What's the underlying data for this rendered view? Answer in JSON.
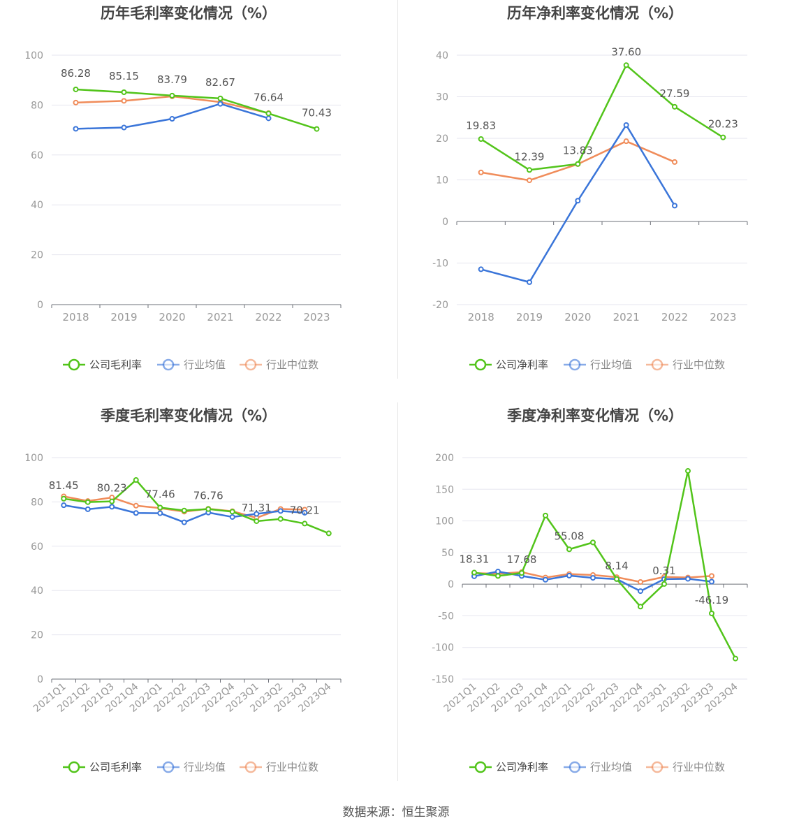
{
  "source_text": "数据来源：恒生聚源",
  "colors": {
    "company": "#52c41a",
    "avg": "#3a75d9",
    "median": "#f08c5a",
    "grid": "#e6e6ef",
    "axis": "#6e7079",
    "label": "#999999",
    "datalabel": "#555555"
  },
  "chart_data": [
    {
      "type": "line",
      "title": "历年毛利率变化情况（%）",
      "categories": [
        "2018",
        "2019",
        "2020",
        "2021",
        "2022",
        "2023"
      ],
      "yticks": [
        0,
        20,
        40,
        60,
        80,
        100
      ],
      "ylim": [
        0,
        100
      ],
      "series": [
        {
          "name": "公司毛利率",
          "key": "company",
          "values": [
            86.28,
            85.15,
            83.79,
            82.67,
            76.64,
            70.43
          ]
        },
        {
          "name": "行业均值",
          "key": "avg",
          "values": [
            70.5,
            71.0,
            74.5,
            80.5,
            74.7,
            null
          ]
        },
        {
          "name": "行业中位数",
          "key": "median",
          "values": [
            81.0,
            81.7,
            83.5,
            81.2,
            76.8,
            null
          ]
        }
      ],
      "data_labels": [
        {
          "index": 0,
          "text": "86.28"
        },
        {
          "index": 1,
          "text": "85.15"
        },
        {
          "index": 2,
          "text": "83.79"
        },
        {
          "index": 3,
          "text": "82.67"
        },
        {
          "index": 4,
          "text": "76.64"
        },
        {
          "index": 5,
          "text": "70.43"
        }
      ],
      "legend": [
        "公司毛利率",
        "行业均值",
        "行业中位数"
      ]
    },
    {
      "type": "line",
      "title": "历年净利率变化情况（%）",
      "categories": [
        "2018",
        "2019",
        "2020",
        "2021",
        "2022",
        "2023"
      ],
      "yticks": [
        -20,
        -10,
        0,
        10,
        20,
        30,
        40
      ],
      "ylim": [
        -20,
        40
      ],
      "series": [
        {
          "name": "公司净利率",
          "key": "company",
          "values": [
            19.83,
            12.39,
            13.83,
            37.6,
            27.59,
            20.23
          ]
        },
        {
          "name": "行业均值",
          "key": "avg",
          "values": [
            -11.5,
            -14.6,
            5.0,
            23.2,
            3.8,
            null
          ]
        },
        {
          "name": "行业中位数",
          "key": "median",
          "values": [
            11.8,
            9.9,
            13.8,
            19.3,
            14.3,
            null
          ]
        }
      ],
      "data_labels": [
        {
          "index": 0,
          "text": "19.83"
        },
        {
          "index": 1,
          "text": "12.39"
        },
        {
          "index": 2,
          "text": "13.83"
        },
        {
          "index": 3,
          "text": "37.60"
        },
        {
          "index": 4,
          "text": "27.59"
        },
        {
          "index": 5,
          "text": "20.23"
        }
      ],
      "legend": [
        "公司净利率",
        "行业均值",
        "行业中位数"
      ]
    },
    {
      "type": "line",
      "title": "季度毛利率变化情况（%）",
      "categories": [
        "2021Q1",
        "2021Q2",
        "2021Q3",
        "2021Q4",
        "2022Q1",
        "2022Q2",
        "2022Q3",
        "2022Q4",
        "2023Q1",
        "2023Q2",
        "2023Q3",
        "2023Q4"
      ],
      "yticks": [
        0,
        20,
        40,
        60,
        80,
        100
      ],
      "ylim": [
        0,
        100
      ],
      "series": [
        {
          "name": "公司毛利率",
          "key": "company",
          "values": [
            81.45,
            79.9,
            80.23,
            89.9,
            77.46,
            76.1,
            76.76,
            75.6,
            71.31,
            72.3,
            70.21,
            65.8
          ]
        },
        {
          "name": "行业均值",
          "key": "avg",
          "values": [
            78.5,
            76.7,
            77.8,
            75.0,
            74.9,
            70.8,
            75.2,
            73.2,
            74.6,
            75.9,
            75.1,
            null
          ]
        },
        {
          "name": "行业中位数",
          "key": "median",
          "values": [
            82.5,
            80.4,
            82.0,
            78.3,
            77.2,
            75.6,
            76.9,
            75.8,
            72.8,
            76.8,
            76.5,
            null
          ]
        }
      ],
      "data_labels": [
        {
          "index": 0,
          "text": "81.45"
        },
        {
          "index": 2,
          "text": "80.23"
        },
        {
          "index": 4,
          "text": "77.46"
        },
        {
          "index": 6,
          "text": "76.76"
        },
        {
          "index": 8,
          "text": "71.31"
        },
        {
          "index": 10,
          "text": "70.21"
        }
      ],
      "legend": [
        "公司毛利率",
        "行业均值",
        "行业中位数"
      ]
    },
    {
      "type": "line",
      "title": "季度净利率变化情况（%）",
      "categories": [
        "2021Q1",
        "2021Q2",
        "2021Q3",
        "2021Q4",
        "2022Q1",
        "2022Q2",
        "2022Q3",
        "2022Q4",
        "2023Q1",
        "2023Q2",
        "2023Q3",
        "2023Q4"
      ],
      "yticks": [
        -150,
        -100,
        -50,
        0,
        50,
        100,
        150,
        200
      ],
      "ylim": [
        -150,
        200
      ],
      "series": [
        {
          "name": "公司净利率",
          "key": "company",
          "values": [
            18.31,
            13.0,
            17.68,
            108.5,
            55.08,
            66.0,
            8.14,
            -35.5,
            0.31,
            179.0,
            -46.19,
            -117.5
          ]
        },
        {
          "name": "行业均值",
          "key": "avg",
          "values": [
            12.5,
            20.0,
            13.0,
            7.0,
            13.5,
            10.0,
            8.0,
            -11.0,
            8.0,
            8.5,
            4.0,
            null
          ]
        },
        {
          "name": "行业中位数",
          "key": "median",
          "values": [
            17.5,
            16.5,
            19.0,
            10.5,
            16.0,
            14.5,
            11.0,
            3.5,
            11.5,
            10.5,
            13.0,
            null
          ]
        }
      ],
      "data_labels": [
        {
          "index": 0,
          "text": "18.31"
        },
        {
          "index": 2,
          "text": "17.68"
        },
        {
          "index": 4,
          "text": "55.08"
        },
        {
          "index": 6,
          "text": "8.14"
        },
        {
          "index": 8,
          "text": "0.31"
        },
        {
          "index": 10,
          "text": "-46.19"
        }
      ],
      "legend": [
        "公司净利率",
        "行业均值",
        "行业中位数"
      ]
    }
  ]
}
